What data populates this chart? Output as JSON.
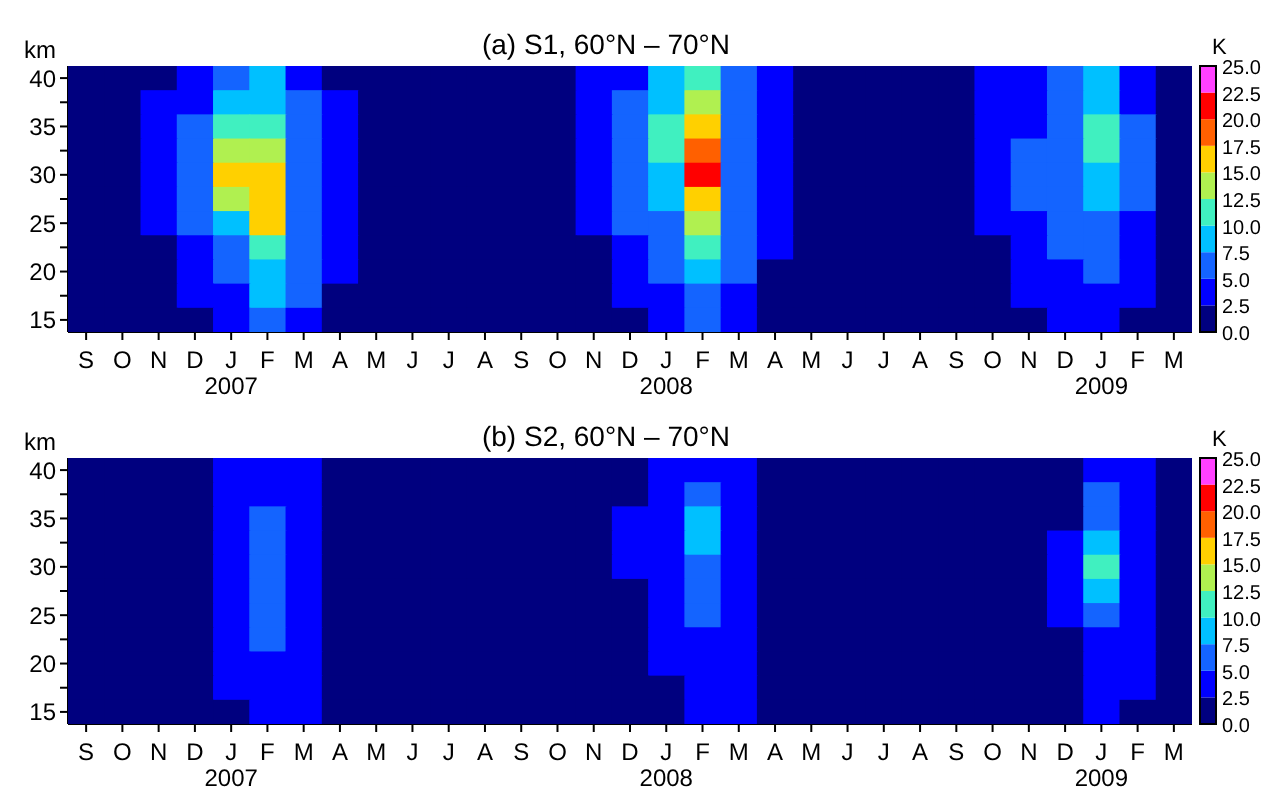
{
  "chart_data": [
    {
      "type": "heatmap",
      "title": "(a) S1, 60°N – 70°N",
      "ylabel": "km",
      "clabel": "K",
      "categories": [
        "S",
        "O",
        "N",
        "D",
        "J\n2007",
        "F",
        "M",
        "A",
        "M",
        "J",
        "J",
        "A",
        "S",
        "O",
        "N",
        "D",
        "J\n2008",
        "F",
        "M",
        "A",
        "M",
        "J",
        "J",
        "A",
        "S",
        "O",
        "N",
        "D",
        "J\n2009",
        "F",
        "M"
      ],
      "y_categories": [
        "40",
        null,
        "35",
        null,
        "30",
        null,
        "25",
        null,
        "20",
        null,
        "15"
      ],
      "colors": [
        "#00007f",
        "#0000ff",
        "#1464ff",
        "#00c0ff",
        "#40f0c0",
        "#b0f050",
        "#ffd000",
        "#ff6000",
        "#ff0000",
        "#ff40ff"
      ],
      "clim": [
        0,
        25
      ],
      "cticks": [
        {
          "value": 0,
          "label": "0.0"
        },
        {
          "value": 2.5,
          "label": "2.5"
        },
        {
          "value": 5,
          "label": "5.0"
        },
        {
          "value": 7.5,
          "label": "7.5"
        },
        {
          "value": 10,
          "label": "10.0"
        },
        {
          "value": 12.5,
          "label": "12.5"
        },
        {
          "value": 15,
          "label": "15.0"
        },
        {
          "value": 17.5,
          "label": "17.5"
        },
        {
          "value": 20,
          "label": "20.0"
        },
        {
          "value": 22.5,
          "label": "22.5"
        },
        {
          "value": 25,
          "label": "25.0"
        }
      ],
      "cells": [
        [
          1,
          1,
          2,
          3,
          6,
          8,
          4,
          2,
          1,
          1,
          1,
          1,
          1,
          1,
          3,
          4,
          8,
          11,
          6,
          3,
          1,
          1,
          1,
          1,
          1,
          3,
          4,
          6,
          8,
          4,
          1
        ],
        [
          1,
          1,
          3,
          4,
          9,
          9,
          5,
          3,
          1,
          1,
          1,
          1,
          1,
          1,
          3,
          5,
          9,
          14,
          6,
          3,
          1,
          1,
          1,
          1,
          1,
          3,
          4,
          6,
          9,
          4,
          1
        ],
        [
          1,
          1,
          3,
          5,
          11,
          12,
          6,
          3,
          2,
          1,
          1,
          1,
          1,
          2,
          3,
          6,
          10,
          16,
          7,
          3,
          1,
          1,
          1,
          1,
          1,
          3,
          4,
          6,
          11,
          5,
          2
        ],
        [
          1,
          1,
          3,
          6,
          14,
          14,
          6,
          3,
          2,
          1,
          1,
          1,
          1,
          2,
          3,
          6,
          10,
          19,
          7,
          3,
          1,
          1,
          1,
          1,
          1,
          3,
          5,
          6,
          11,
          6,
          2
        ],
        [
          1,
          1,
          3,
          6,
          16,
          16,
          7,
          3,
          2,
          1,
          1,
          1,
          1,
          2,
          3,
          6,
          9,
          21,
          7,
          3,
          1,
          1,
          1,
          1,
          1,
          3,
          5,
          6,
          9,
          5,
          2
        ],
        [
          1,
          1,
          3,
          6,
          13,
          17,
          6,
          3,
          2,
          1,
          1,
          1,
          1,
          2,
          3,
          5,
          8,
          17,
          6,
          3,
          1,
          1,
          1,
          1,
          1,
          3,
          5,
          6,
          8,
          5,
          1
        ],
        [
          1,
          1,
          3,
          5,
          9,
          16,
          6,
          3,
          2,
          1,
          1,
          1,
          1,
          1,
          3,
          5,
          7,
          14,
          6,
          3,
          1,
          1,
          1,
          1,
          1,
          3,
          4,
          6,
          7,
          4,
          1
        ],
        [
          1,
          1,
          2,
          4,
          7,
          12,
          6,
          3,
          1,
          1,
          1,
          1,
          1,
          1,
          2,
          4,
          6,
          11,
          6,
          3,
          1,
          1,
          1,
          1,
          1,
          2,
          4,
          5,
          6,
          4,
          1
        ],
        [
          1,
          1,
          2,
          3,
          6,
          9,
          5,
          3,
          1,
          1,
          1,
          1,
          1,
          1,
          2,
          3,
          5,
          9,
          5,
          2,
          1,
          1,
          1,
          1,
          1,
          2,
          3,
          4,
          5,
          3,
          1
        ],
        [
          1,
          1,
          1,
          3,
          4,
          8,
          5,
          2,
          1,
          1,
          1,
          1,
          1,
          1,
          1,
          3,
          4,
          7,
          4,
          2,
          1,
          1,
          1,
          1,
          1,
          1,
          3,
          4,
          4,
          3,
          1
        ],
        [
          1,
          1,
          1,
          2,
          3,
          7,
          4,
          2,
          1,
          1,
          1,
          1,
          1,
          1,
          1,
          2,
          3,
          6,
          4,
          2,
          1,
          1,
          1,
          1,
          1,
          1,
          2,
          3,
          3,
          2,
          1
        ]
      ]
    },
    {
      "type": "heatmap",
      "title": "(b) S2, 60°N – 70°N",
      "ylabel": "km",
      "clabel": "K",
      "categories": [
        "S",
        "O",
        "N",
        "D",
        "J\n2007",
        "F",
        "M",
        "A",
        "M",
        "J",
        "J",
        "A",
        "S",
        "O",
        "N",
        "D",
        "J\n2008",
        "F",
        "M",
        "A",
        "M",
        "J",
        "J",
        "A",
        "S",
        "O",
        "N",
        "D",
        "J\n2009",
        "F",
        "M"
      ],
      "y_categories": [
        "40",
        null,
        "35",
        null,
        "30",
        null,
        "25",
        null,
        "20",
        null,
        "15"
      ],
      "colors": [
        "#00007f",
        "#0000ff",
        "#1464ff",
        "#00c0ff",
        "#40f0c0",
        "#b0f050",
        "#ffd000",
        "#ff6000",
        "#ff0000",
        "#ff40ff"
      ],
      "clim": [
        0,
        25
      ],
      "cticks": [
        {
          "value": 0,
          "label": "0.0"
        },
        {
          "value": 2.5,
          "label": "2.5"
        },
        {
          "value": 5,
          "label": "5.0"
        },
        {
          "value": 7.5,
          "label": "7.5"
        },
        {
          "value": 10,
          "label": "10.0"
        },
        {
          "value": 12.5,
          "label": "12.5"
        },
        {
          "value": 15,
          "label": "15.0"
        },
        {
          "value": 17.5,
          "label": "17.5"
        },
        {
          "value": 20,
          "label": "20.0"
        },
        {
          "value": 22.5,
          "label": "22.5"
        },
        {
          "value": 25,
          "label": "25.0"
        }
      ],
      "cells": [
        [
          1,
          1,
          1,
          1,
          3,
          4,
          3,
          1,
          1,
          1,
          1,
          1,
          1,
          1,
          1,
          2,
          3,
          4,
          3,
          1,
          1,
          1,
          1,
          1,
          1,
          1,
          1,
          2,
          4,
          3,
          1
        ],
        [
          1,
          1,
          1,
          1,
          3,
          4,
          3,
          1,
          1,
          1,
          1,
          1,
          1,
          1,
          1,
          2,
          4,
          7,
          3,
          1,
          1,
          1,
          1,
          1,
          1,
          1,
          1,
          2,
          5,
          3,
          1
        ],
        [
          1,
          1,
          1,
          2,
          3,
          5,
          4,
          2,
          1,
          1,
          1,
          1,
          1,
          1,
          1,
          3,
          4,
          9,
          4,
          1,
          1,
          1,
          1,
          1,
          1,
          1,
          1,
          2,
          7,
          3,
          1
        ],
        [
          1,
          1,
          1,
          2,
          3,
          6,
          4,
          2,
          1,
          1,
          1,
          1,
          1,
          1,
          1,
          3,
          4,
          8,
          4,
          2,
          1,
          1,
          1,
          1,
          1,
          1,
          1,
          3,
          9,
          3,
          1
        ],
        [
          1,
          1,
          1,
          2,
          4,
          6,
          4,
          2,
          1,
          1,
          1,
          1,
          1,
          1,
          1,
          3,
          4,
          6,
          4,
          2,
          1,
          1,
          1,
          1,
          1,
          1,
          1,
          3,
          11,
          4,
          1
        ],
        [
          1,
          1,
          1,
          2,
          4,
          6,
          4,
          2,
          1,
          1,
          1,
          1,
          1,
          1,
          1,
          2,
          4,
          6,
          4,
          2,
          1,
          1,
          1,
          1,
          1,
          1,
          1,
          3,
          8,
          4,
          1
        ],
        [
          1,
          1,
          1,
          2,
          4,
          6,
          4,
          2,
          1,
          1,
          1,
          1,
          1,
          1,
          1,
          2,
          4,
          5,
          4,
          2,
          1,
          1,
          1,
          1,
          1,
          1,
          1,
          3,
          6,
          3,
          1
        ],
        [
          1,
          1,
          1,
          2,
          3,
          5,
          4,
          2,
          1,
          1,
          1,
          1,
          1,
          1,
          1,
          2,
          3,
          4,
          3,
          1,
          1,
          1,
          1,
          1,
          1,
          1,
          1,
          2,
          4,
          3,
          1
        ],
        [
          1,
          1,
          1,
          1,
          3,
          4,
          3,
          2,
          1,
          1,
          1,
          1,
          1,
          1,
          1,
          1,
          3,
          4,
          3,
          1,
          1,
          1,
          1,
          1,
          1,
          1,
          1,
          2,
          4,
          3,
          1
        ],
        [
          1,
          1,
          1,
          1,
          3,
          3,
          3,
          2,
          1,
          1,
          1,
          1,
          1,
          1,
          1,
          1,
          2,
          3,
          3,
          1,
          1,
          1,
          1,
          1,
          1,
          1,
          1,
          1,
          3,
          3,
          1
        ],
        [
          1,
          1,
          1,
          1,
          2,
          3,
          3,
          2,
          1,
          1,
          1,
          1,
          1,
          1,
          1,
          1,
          2,
          3,
          3,
          1,
          1,
          1,
          1,
          1,
          1,
          1,
          1,
          1,
          3,
          2,
          1
        ]
      ]
    }
  ]
}
